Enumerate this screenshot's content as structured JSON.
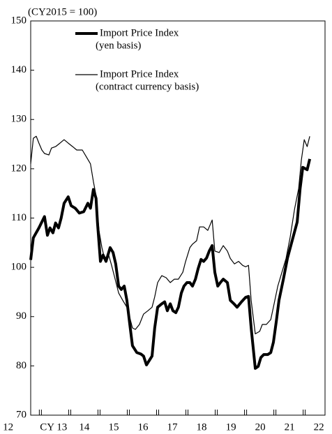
{
  "chart_data": {
    "type": "line",
    "subtitle": "(CY2015 = 100)",
    "xlim": [
      2012.67,
      2022.71
    ],
    "ylim": [
      70,
      150
    ],
    "yticks": [
      70,
      80,
      90,
      100,
      110,
      120,
      130,
      140,
      150
    ],
    "xticks": [
      {
        "value": 2011.9,
        "label": "12"
      },
      {
        "value": 2013.45,
        "label": "CY 13"
      },
      {
        "value": 2014.5,
        "label": "14"
      },
      {
        "value": 2015.5,
        "label": "15"
      },
      {
        "value": 2016.5,
        "label": "16"
      },
      {
        "value": 2017.5,
        "label": "17"
      },
      {
        "value": 2018.5,
        "label": "18"
      },
      {
        "value": 2019.5,
        "label": "19"
      },
      {
        "value": 2020.5,
        "label": "20"
      },
      {
        "value": 2021.5,
        "label": "21"
      },
      {
        "value": 2022.5,
        "label": "22"
      }
    ],
    "year_marks": [
      2013,
      2014,
      2015,
      2016,
      2017,
      2018,
      2019,
      2020,
      2021,
      2022
    ],
    "series": [
      {
        "name": "Import Price Index",
        "basis": "(yen basis)",
        "color": "#000000",
        "width": 4,
        "x": [
          2012.67,
          2012.76,
          2012.95,
          2013.14,
          2013.24,
          2013.33,
          2013.43,
          2013.52,
          2013.62,
          2013.71,
          2013.81,
          2013.95,
          2014.05,
          2014.19,
          2014.33,
          2014.48,
          2014.62,
          2014.71,
          2014.81,
          2014.9,
          2014.95,
          2015.05,
          2015.14,
          2015.24,
          2015.38,
          2015.48,
          2015.57,
          2015.67,
          2015.76,
          2015.86,
          2015.95,
          2016.05,
          2016.14,
          2016.29,
          2016.43,
          2016.52,
          2016.62,
          2016.81,
          2016.9,
          2017.0,
          2017.14,
          2017.24,
          2017.33,
          2017.43,
          2017.52,
          2017.62,
          2017.71,
          2017.81,
          2017.9,
          2018.0,
          2018.1,
          2018.19,
          2018.29,
          2018.38,
          2018.48,
          2018.57,
          2018.67,
          2018.76,
          2018.86,
          2018.95,
          2019.05,
          2019.14,
          2019.24,
          2019.38,
          2019.48,
          2019.62,
          2019.71,
          2019.86,
          2020.0,
          2020.1,
          2020.19,
          2020.33,
          2020.43,
          2020.52,
          2020.62,
          2020.76,
          2020.86,
          2020.95,
          2021.05,
          2021.14,
          2021.29,
          2021.43,
          2021.62,
          2021.76,
          2021.86,
          2021.95,
          2022.1,
          2022.19
        ],
        "values": [
          101.5,
          106,
          108,
          110.3,
          106.5,
          108,
          107,
          109,
          108,
          110,
          113,
          114.3,
          112.5,
          112,
          111,
          111.3,
          113,
          112,
          115.8,
          114,
          109,
          101.2,
          102.5,
          101.2,
          104,
          103,
          100.7,
          96.2,
          95.5,
          96.2,
          93.3,
          88.4,
          84.1,
          82.7,
          82.4,
          82,
          80.2,
          82,
          87.7,
          91.9,
          92.6,
          93,
          91.2,
          92.6,
          91.2,
          90.8,
          91.9,
          94.8,
          96.2,
          96.9,
          96.9,
          96.2,
          97.6,
          99.7,
          101.6,
          101.2,
          101.9,
          103.3,
          104.4,
          99,
          96.2,
          96.9,
          97.6,
          96.9,
          93.3,
          92.5,
          91.9,
          93,
          93.9,
          94.1,
          87.7,
          79.5,
          79.9,
          81.7,
          82.3,
          82.3,
          82.7,
          84.8,
          89.1,
          93.3,
          97.6,
          101.9,
          106.1,
          109.2,
          116,
          120.3,
          119.8,
          122
        ]
      },
      {
        "name": "Import Price Index",
        "basis": "(contract currency basis)",
        "color": "#000000",
        "width": 1.2,
        "x": [
          2012.67,
          2012.76,
          2012.86,
          2012.95,
          2013.05,
          2013.14,
          2013.29,
          2013.38,
          2013.52,
          2013.67,
          2013.81,
          2013.95,
          2014.1,
          2014.24,
          2014.43,
          2014.57,
          2014.71,
          2014.81,
          2014.9,
          2015.0,
          2015.1,
          2015.19,
          2015.33,
          2015.43,
          2015.52,
          2015.67,
          2015.81,
          2015.95,
          2016.05,
          2016.14,
          2016.24,
          2016.38,
          2016.52,
          2016.67,
          2016.81,
          2016.9,
          2017.0,
          2017.14,
          2017.29,
          2017.43,
          2017.57,
          2017.71,
          2017.86,
          2017.95,
          2018.1,
          2018.19,
          2018.33,
          2018.43,
          2018.57,
          2018.71,
          2018.86,
          2018.95,
          2019.1,
          2019.24,
          2019.38,
          2019.48,
          2019.62,
          2019.76,
          2019.9,
          2020.0,
          2020.1,
          2020.19,
          2020.33,
          2020.48,
          2020.57,
          2020.71,
          2020.86,
          2020.95,
          2021.1,
          2021.24,
          2021.38,
          2021.52,
          2021.67,
          2021.81,
          2021.9,
          2022.0,
          2022.1,
          2022.19
        ],
        "values": [
          121,
          126.2,
          126.6,
          125.2,
          123.8,
          123.1,
          122.8,
          124.2,
          124.5,
          125.2,
          125.9,
          125.2,
          124.5,
          123.8,
          123.8,
          122.4,
          121,
          117.4,
          114.6,
          107.5,
          104,
          101.8,
          102.5,
          100.4,
          98.3,
          94.8,
          93.3,
          91.9,
          89.8,
          87.7,
          87.4,
          88.4,
          90.5,
          91.2,
          91.9,
          94,
          96.9,
          98.3,
          97.9,
          96.9,
          97.6,
          97.6,
          99,
          101.1,
          104,
          104.7,
          105.4,
          108.2,
          108.2,
          107.5,
          109.6,
          103.3,
          103,
          104.4,
          103.3,
          101.8,
          100.7,
          101.2,
          100.4,
          100.1,
          100.4,
          93.3,
          86.5,
          87,
          88.4,
          88.4,
          89.4,
          91.9,
          96.2,
          99,
          101.8,
          106.1,
          111.8,
          116,
          121.7,
          125.9,
          124.5,
          126.6
        ]
      }
    ]
  }
}
